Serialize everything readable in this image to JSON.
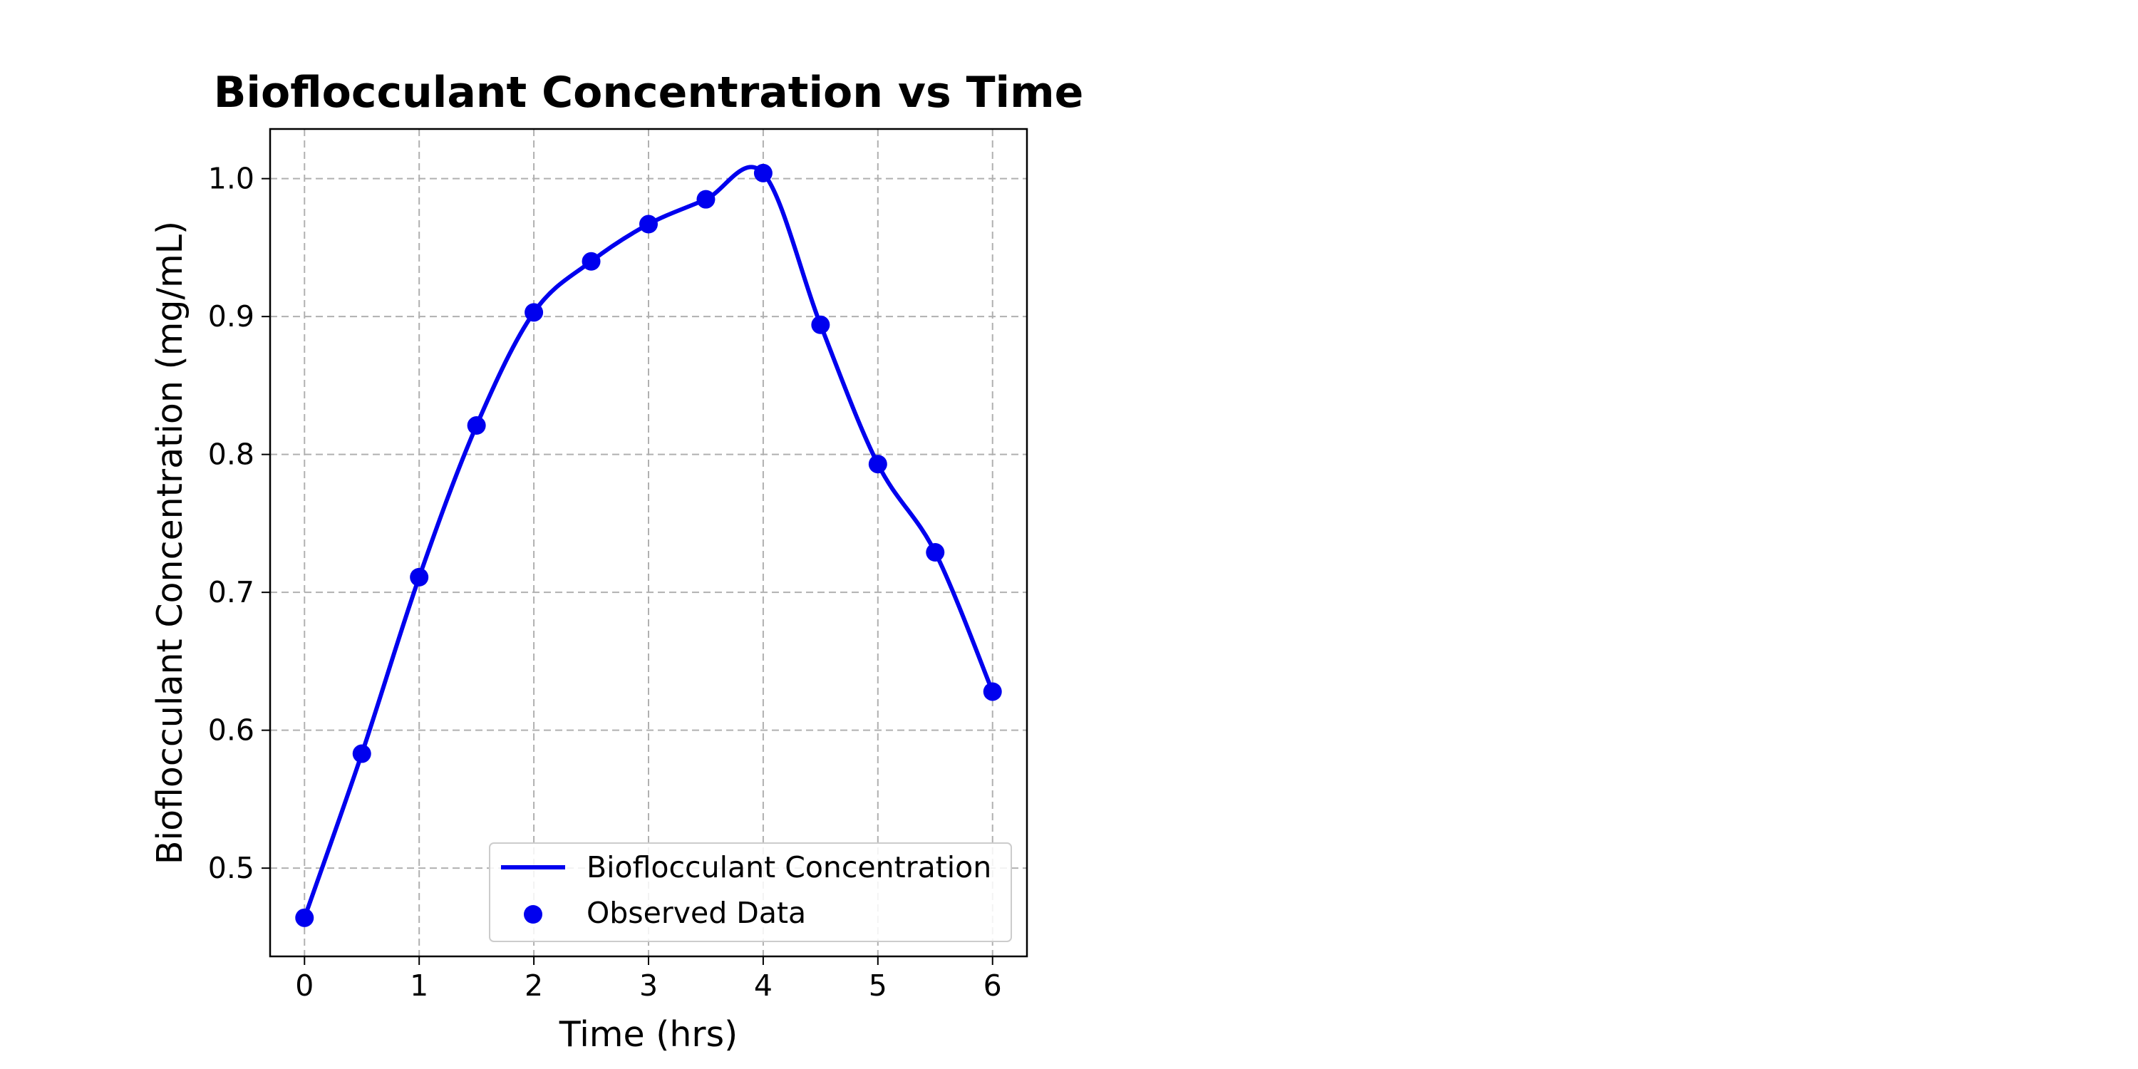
{
  "chart_data": {
    "type": "line",
    "title": "Bioflocculant Concentration vs Time",
    "xlabel": "Time (hrs)",
    "ylabel": "Bioflocculant Concentration (mg/mL)",
    "xlim": [
      -0.3,
      6.3
    ],
    "ylim": [
      0.436,
      1.036
    ],
    "xticks": [
      0,
      1,
      2,
      3,
      4,
      5,
      6
    ],
    "yticks": [
      0.5,
      0.6,
      0.7,
      0.8,
      0.9,
      1.0
    ],
    "xtick_labels": [
      "0",
      "1",
      "2",
      "3",
      "4",
      "5",
      "6"
    ],
    "ytick_labels": [
      "0.5",
      "0.6",
      "0.7",
      "0.8",
      "0.9",
      "1.0"
    ],
    "grid": true,
    "legend_position": "lower-right",
    "series": [
      {
        "name": "Bioflocculant Concentration",
        "kind": "smooth-line",
        "color": "#0000ee",
        "x": [
          0,
          0.5,
          1,
          1.5,
          2,
          2.5,
          3,
          3.5,
          4,
          4.5,
          5,
          5.5,
          6
        ],
        "y": [
          0.464,
          0.583,
          0.711,
          0.821,
          0.903,
          0.94,
          0.967,
          0.985,
          1.004,
          0.894,
          0.793,
          0.729,
          0.628
        ]
      },
      {
        "name": "Observed Data",
        "kind": "scatter",
        "color": "#0000ee",
        "x": [
          0,
          0.5,
          1,
          1.5,
          2,
          2.5,
          3,
          3.5,
          4,
          4.5,
          5,
          5.5,
          6
        ],
        "y": [
          0.464,
          0.583,
          0.711,
          0.821,
          0.903,
          0.94,
          0.967,
          0.985,
          1.004,
          0.894,
          0.793,
          0.729,
          0.628
        ]
      }
    ]
  }
}
